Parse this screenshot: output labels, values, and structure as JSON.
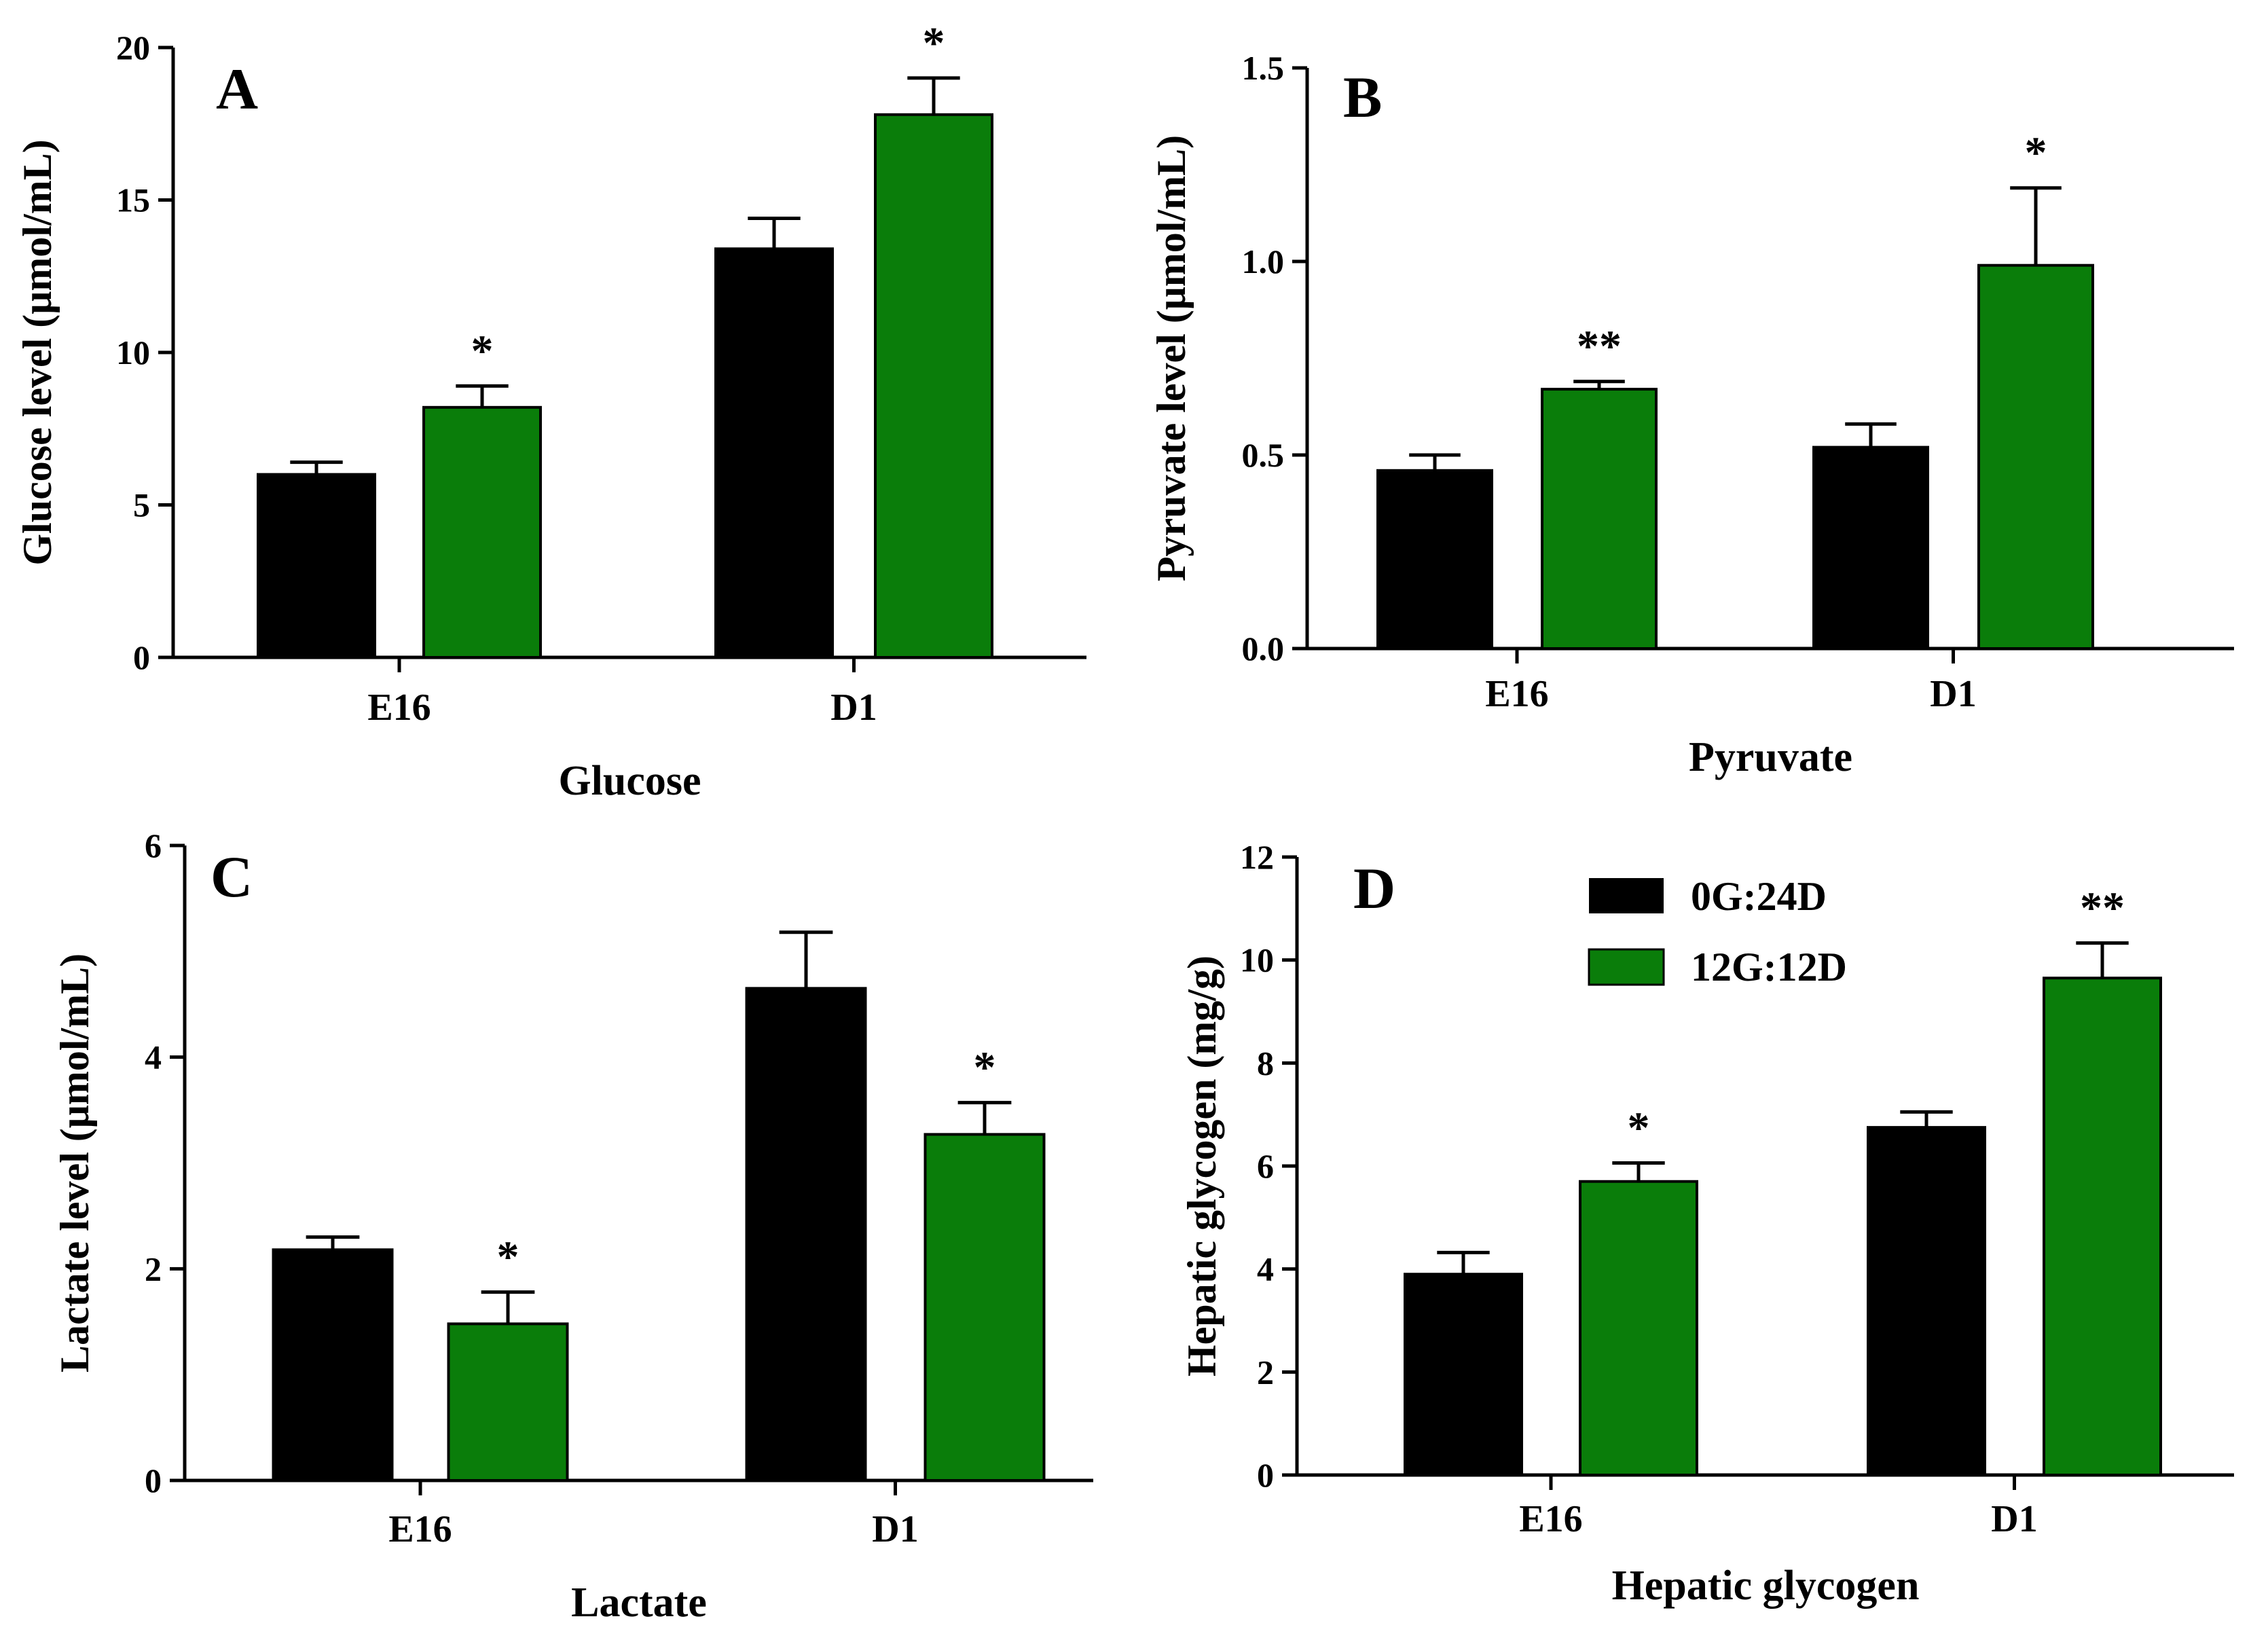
{
  "legend": {
    "items": [
      {
        "label": "0G:24D",
        "color": "#000000"
      },
      {
        "label": "12G:12D",
        "color": "#0a7d0a"
      }
    ]
  },
  "chart_data": [
    {
      "panel": "A",
      "type": "bar",
      "xlabel": "Glucose",
      "ylabel": "Glucose level (μmol/mL)",
      "categories": [
        "E16",
        "D1"
      ],
      "ylim": [
        0,
        20
      ],
      "yticks": [
        "0",
        "5",
        "10",
        "15",
        "20"
      ],
      "series": [
        {
          "name": "0G:24D",
          "values": [
            6.0,
            13.4
          ],
          "errors": [
            0.4,
            1.0
          ]
        },
        {
          "name": "12G:12D",
          "values": [
            8.2,
            17.8
          ],
          "errors": [
            0.7,
            1.2
          ]
        }
      ],
      "significance": [
        [
          "",
          ""
        ],
        [
          "*",
          "*"
        ]
      ]
    },
    {
      "panel": "B",
      "type": "bar",
      "xlabel": "Pyruvate",
      "ylabel": "Pyruvate level (μmol/mL)",
      "categories": [
        "E16",
        "D1"
      ],
      "ylim": [
        0,
        1.5
      ],
      "yticks": [
        "0.0",
        "0.5",
        "1.0",
        "1.5"
      ],
      "series": [
        {
          "name": "0G:24D",
          "values": [
            0.46,
            0.52
          ],
          "errors": [
            0.04,
            0.06
          ]
        },
        {
          "name": "12G:12D",
          "values": [
            0.67,
            0.99
          ],
          "errors": [
            0.02,
            0.2
          ]
        }
      ],
      "significance": [
        [
          "",
          ""
        ],
        [
          "**",
          "*"
        ]
      ]
    },
    {
      "panel": "C",
      "type": "bar",
      "xlabel": "Lactate",
      "ylabel": "Lactate level (μmol/mL)",
      "categories": [
        "E16",
        "D1"
      ],
      "ylim": [
        0,
        6
      ],
      "yticks": [
        "0",
        "2",
        "4",
        "6"
      ],
      "series": [
        {
          "name": "0G:24D",
          "values": [
            2.18,
            4.65
          ],
          "errors": [
            0.12,
            0.53
          ]
        },
        {
          "name": "12G:12D",
          "values": [
            1.48,
            3.27
          ],
          "errors": [
            0.3,
            0.3
          ]
        }
      ],
      "significance": [
        [
          "",
          ""
        ],
        [
          "*",
          "*"
        ]
      ]
    },
    {
      "panel": "D",
      "type": "bar",
      "xlabel": "Hepatic glycogen",
      "ylabel": "Hepatic glycogen (mg/g)",
      "categories": [
        "E16",
        "D1"
      ],
      "ylim": [
        0,
        12
      ],
      "yticks": [
        "0",
        "2",
        "4",
        "6",
        "8",
        "10",
        "12"
      ],
      "series": [
        {
          "name": "0G:24D",
          "values": [
            3.9,
            6.75
          ],
          "errors": [
            0.42,
            0.3
          ]
        },
        {
          "name": "12G:12D",
          "values": [
            5.7,
            9.65
          ],
          "errors": [
            0.36,
            0.68
          ]
        }
      ],
      "significance": [
        [
          "",
          ""
        ],
        [
          "*",
          "**"
        ]
      ]
    }
  ]
}
